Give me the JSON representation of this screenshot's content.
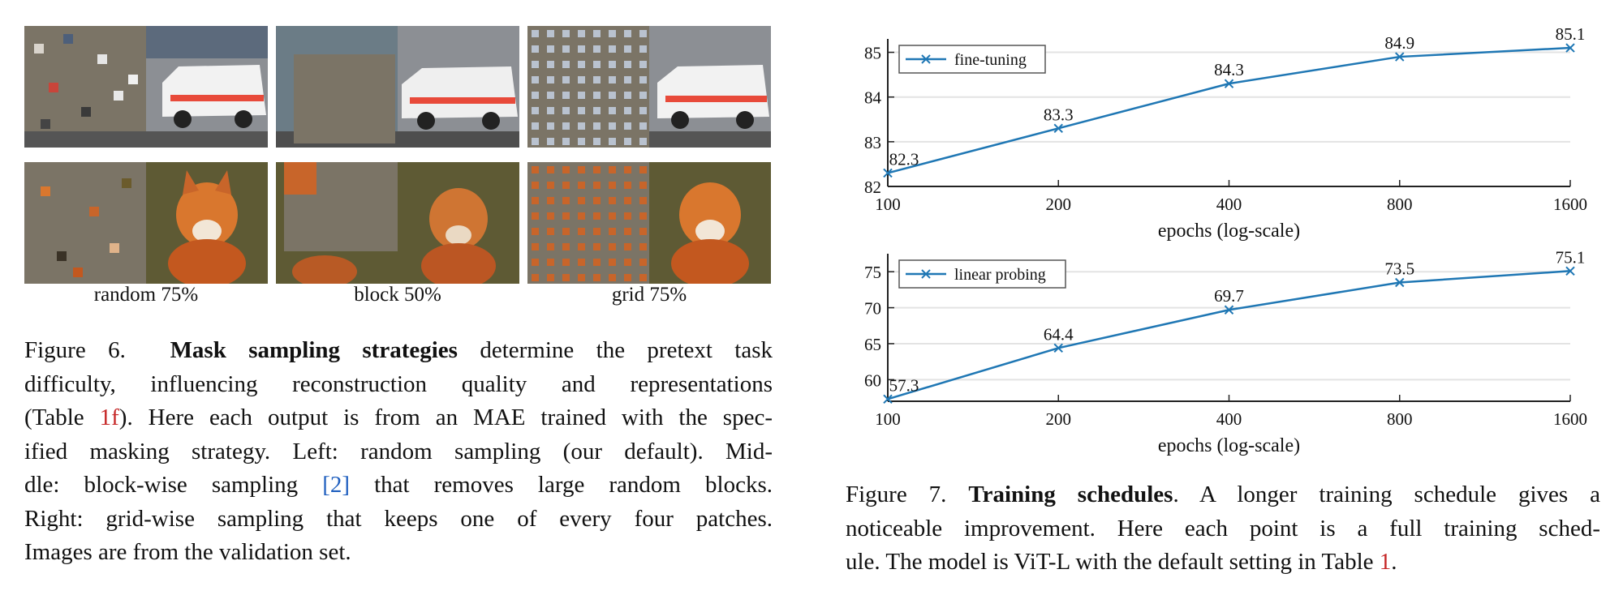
{
  "figure6": {
    "strategy_labels": [
      "random 75%",
      "block 50%",
      "grid 75%"
    ],
    "caption": {
      "fig_label": "Figure 6.",
      "bold": "Mask sampling strategies",
      "l1_rest": "determine the pretext task",
      "l2": "difficulty, influencing reconstruction quality and representations",
      "l3_a": "(Table ",
      "l3_ref": "1f",
      "l3_b": "). Here each output is from an MAE trained with the spec-",
      "l4": "ified masking strategy. Left: random sampling (our default). Mid-",
      "l5_a": "dle: block-wise sampling ",
      "l5_ref": "[2]",
      "l5_b": " that removes large random blocks.",
      "l6": "Right: grid-wise sampling that keeps one of every four patches.",
      "l7": "Images are from the validation set."
    }
  },
  "figure7": {
    "caption": {
      "fig_label": "Figure 7.",
      "bold": "Training schedules",
      "l1_rest": ". A longer training schedule gives a",
      "l2": "noticeable improvement. Here each point is a full training sched-",
      "l3_a": "ule. The model is ViT-L with the default setting in Table ",
      "l3_ref": "1",
      "l3_b": "."
    }
  },
  "chart_data": [
    {
      "type": "line",
      "x": [
        100,
        200,
        400,
        800,
        1600
      ],
      "x_scale": "log",
      "x_ticks": [
        "100",
        "200",
        "400",
        "800",
        "1600"
      ],
      "series": [
        {
          "name": "fine-tuning",
          "values": [
            82.3,
            83.3,
            84.3,
            84.9,
            85.1
          ]
        }
      ],
      "data_labels": [
        "82.3",
        "83.3",
        "84.3",
        "84.9",
        "85.1"
      ],
      "y_ticks": [
        "82",
        "83",
        "84",
        "85"
      ],
      "ylim": [
        82,
        85.3
      ],
      "xlabel": "epochs (log-scale)",
      "ylabel": "",
      "legend": "top-left",
      "grid": true,
      "color": "#1f77b4"
    },
    {
      "type": "line",
      "x": [
        100,
        200,
        400,
        800,
        1600
      ],
      "x_scale": "log",
      "x_ticks": [
        "100",
        "200",
        "400",
        "800",
        "1600"
      ],
      "series": [
        {
          "name": "linear probing",
          "values": [
            57.3,
            64.4,
            69.7,
            73.5,
            75.1
          ]
        }
      ],
      "data_labels": [
        "57.3",
        "64.4",
        "69.7",
        "73.5",
        "75.1"
      ],
      "y_ticks": [
        "60",
        "65",
        "70",
        "75"
      ],
      "ylim": [
        57,
        77.5
      ],
      "xlabel": "epochs (log-scale)",
      "ylabel": "",
      "legend": "top-left",
      "grid": true,
      "color": "#1f77b4"
    }
  ]
}
